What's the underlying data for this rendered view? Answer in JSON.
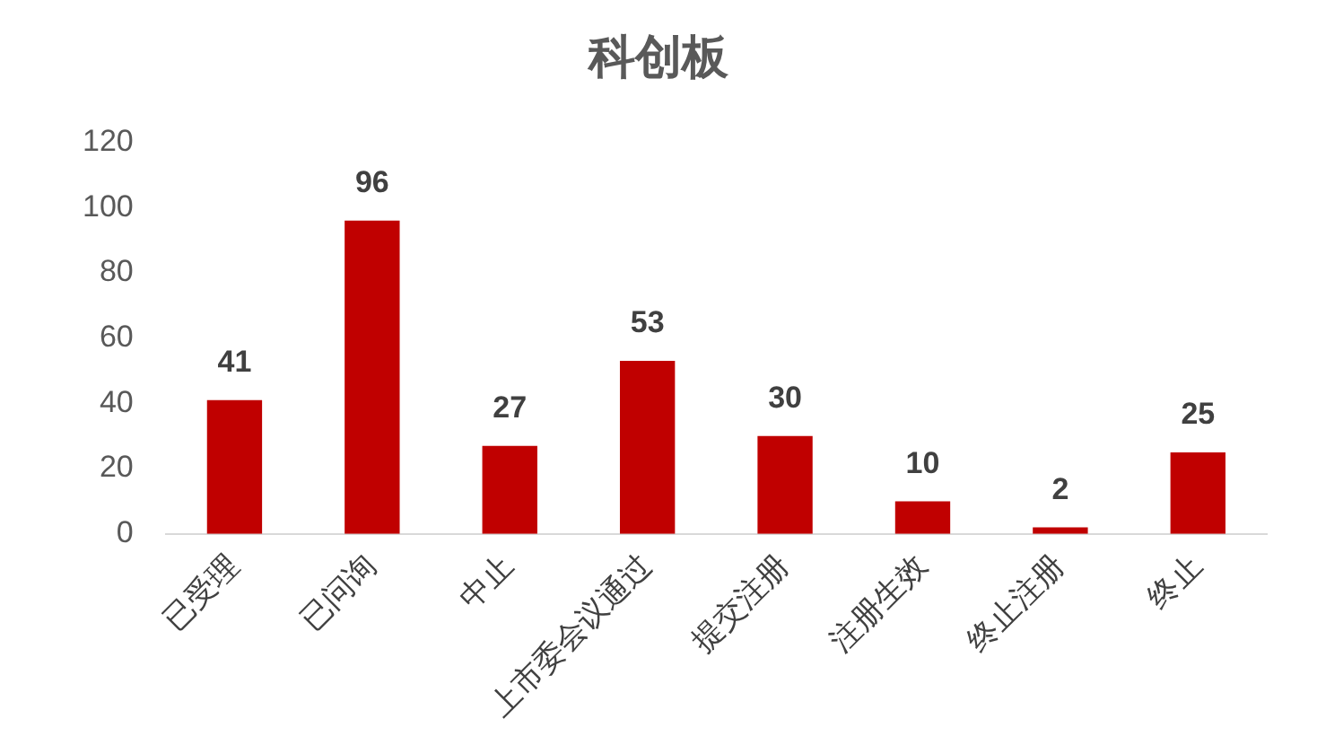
{
  "chart_data": {
    "type": "bar",
    "title": "科创板",
    "categories": [
      "已受理",
      "已问询",
      "中止",
      "上市委会议通过",
      "提交注册",
      "注册生效",
      "终止注册",
      "终止"
    ],
    "values": [
      41,
      96,
      27,
      53,
      30,
      10,
      2,
      25
    ],
    "color": "#c00000",
    "ylim": [
      0,
      120
    ],
    "yticks": [
      0,
      20,
      40,
      60,
      80,
      100,
      120
    ],
    "grid": false,
    "legend": false,
    "data_labels": true
  }
}
